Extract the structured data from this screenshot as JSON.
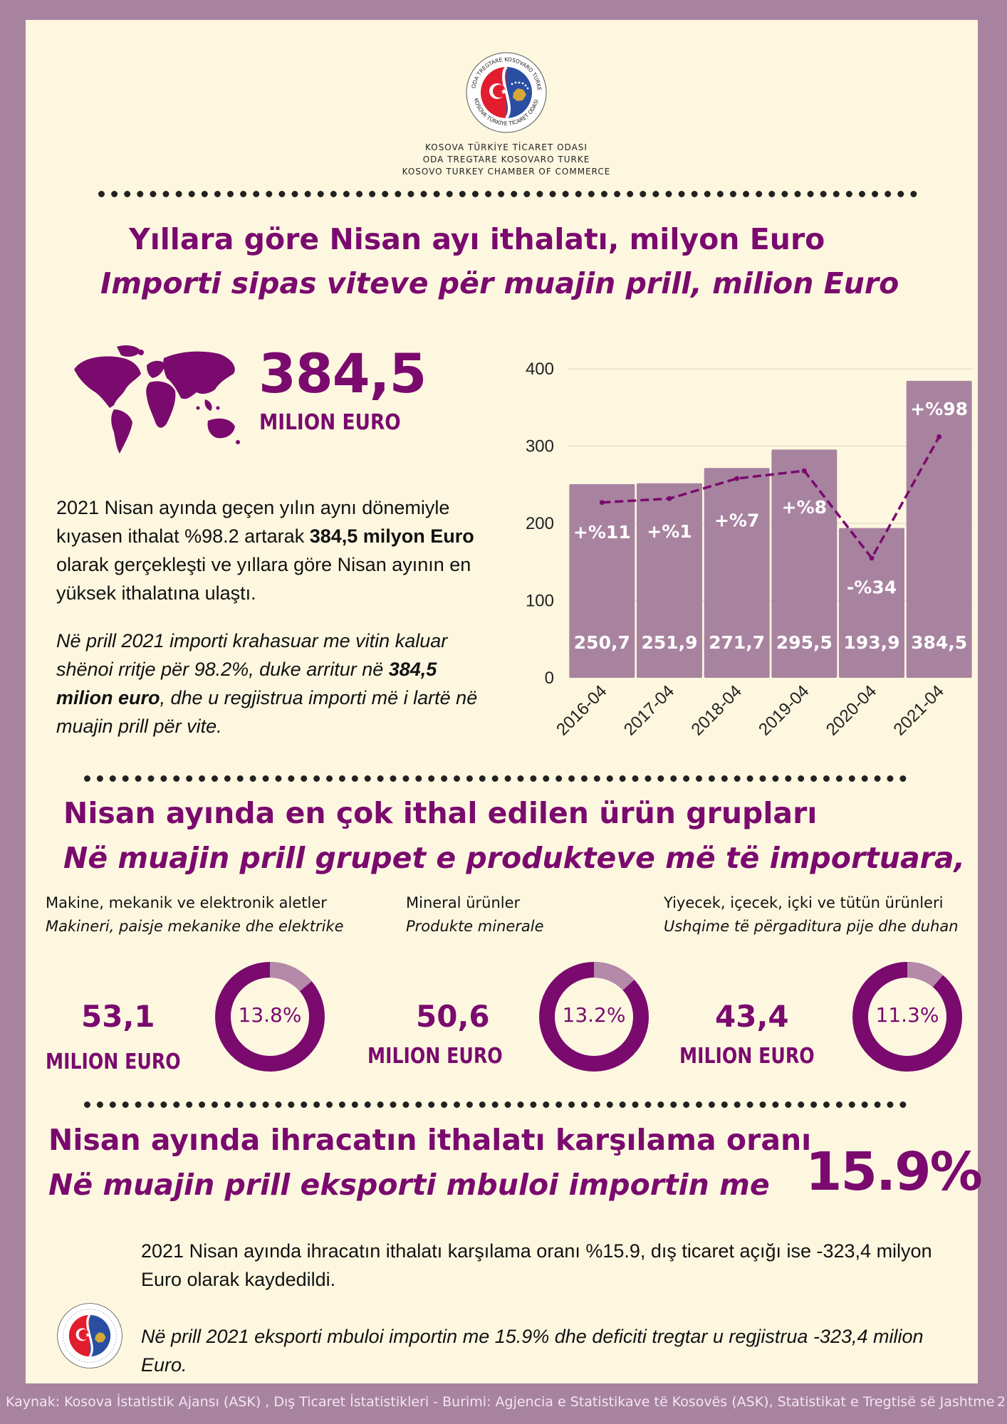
{
  "org": {
    "line1": "KOSOVA TÜRKİYE TİCARET ODASI",
    "line2": "ODA TREGTARE KOSOVARO TURKE",
    "line3": "KOSOVO TURKEY CHAMBER OF COMMERCE",
    "logo_text_top": "ODA TREGTARE KOSOVARO TURKE",
    "logo_text_bottom": "KOSOVA TÜRKİYE TİCARET ODASI"
  },
  "section1": {
    "title_tr": "Yıllara göre Nisan ayı ithalatı, milyon Euro",
    "title_al": "Importi sipas viteve për muajin prill, milion Euro",
    "big_value": "384,5",
    "big_unit": "MILION EURO",
    "para_tr_1": "2021 Nisan ayında geçen yılın aynı dönemiyle kıyasen ithalat %98.2 artarak ",
    "para_tr_bold": "384,5 milyon Euro",
    "para_tr_2": " olarak gerçekleşti ve yıllara göre Nisan ayının en yüksek ithalatına ulaştı.",
    "para_al_1": "Në prill 2021 importi krahasuar me vitin kaluar shënoi rritje për 98.2%, duke arritur në ",
    "para_al_bold": "384,5 milion euro",
    "para_al_2": ", dhe u regjistrua importi më i lartë në muajin prill për vite."
  },
  "chart_data": {
    "type": "bar",
    "categories": [
      "2016-04",
      "2017-04",
      "2018-04",
      "2019-04",
      "2020-04",
      "2021-04"
    ],
    "values": [
      250.7,
      251.9,
      271.7,
      295.5,
      193.9,
      384.5
    ],
    "value_labels": [
      "250,7",
      "251,9",
      "271,7",
      "295,5",
      "193,9",
      "384,5"
    ],
    "growth_labels": [
      "+%11",
      "+%1",
      "+%7",
      "+%8",
      "-%34",
      "+%98"
    ],
    "growth_line": [
      227,
      232,
      258,
      268,
      155,
      312
    ],
    "yticks": [
      0,
      100,
      200,
      300,
      400
    ],
    "ylim": [
      0,
      400
    ],
    "grid": true,
    "bar_color": "#a8839f",
    "line_color": "#7a0a6e"
  },
  "section2": {
    "title_tr": "Nisan ayında en çok ithal edilen ürün grupları",
    "title_al": "Në muajin prill grupet e produkteve më të importuara,",
    "groups": [
      {
        "name_tr": "Makine, mekanik ve elektronik aletler",
        "name_al": "Makineri, paisje mekanike dhe elektrike",
        "value": "53,1",
        "unit": "MILION EURO",
        "share": 13.8,
        "share_label": "13.8%"
      },
      {
        "name_tr": "Mineral ürünler",
        "name_al": "Produkte minerale",
        "value": "50,6",
        "unit": "MILION EURO",
        "share": 13.2,
        "share_label": "13.2%"
      },
      {
        "name_tr": "Yiyecek, içecek, içki ve tütün ürünleri",
        "name_al": "Ushqime të përgaditura pije dhe duhan",
        "value": "43,4",
        "unit": "MILION EURO",
        "share": 11.3,
        "share_label": "11.3%"
      }
    ]
  },
  "section3": {
    "title_tr": "Nisan ayında ihracatın ithalatı karşılama oranı",
    "title_al": "Në muajin prill eksporti mbuloi importin me",
    "ratio": "15.9%",
    "para_tr": "2021 Nisan ayında ihracatın ithalatı karşılama oranı %15.9, dış ticaret açığı ise -323,4 milyon Euro olarak kaydedildi.",
    "para_al": "Në prill 2021 eksporti mbuloi importin me 15.9% dhe deficiti tregtar u regjistrua -323,4 milion Euro."
  },
  "footer": {
    "text": "Kaynak: Kosova İstatistik Ajansı (ASK) ,  Dış Ticaret İstatistikleri -   Burimi: Agjencia e Statistikave të Kosovës (ASK), Statistikat e Tregtisë së Jashtme",
    "page": "2"
  },
  "colors": {
    "accent": "#7a0a6e",
    "frame": "#a8839f",
    "paper": "#fdf7e0",
    "donut_light": "#b48aa8"
  }
}
